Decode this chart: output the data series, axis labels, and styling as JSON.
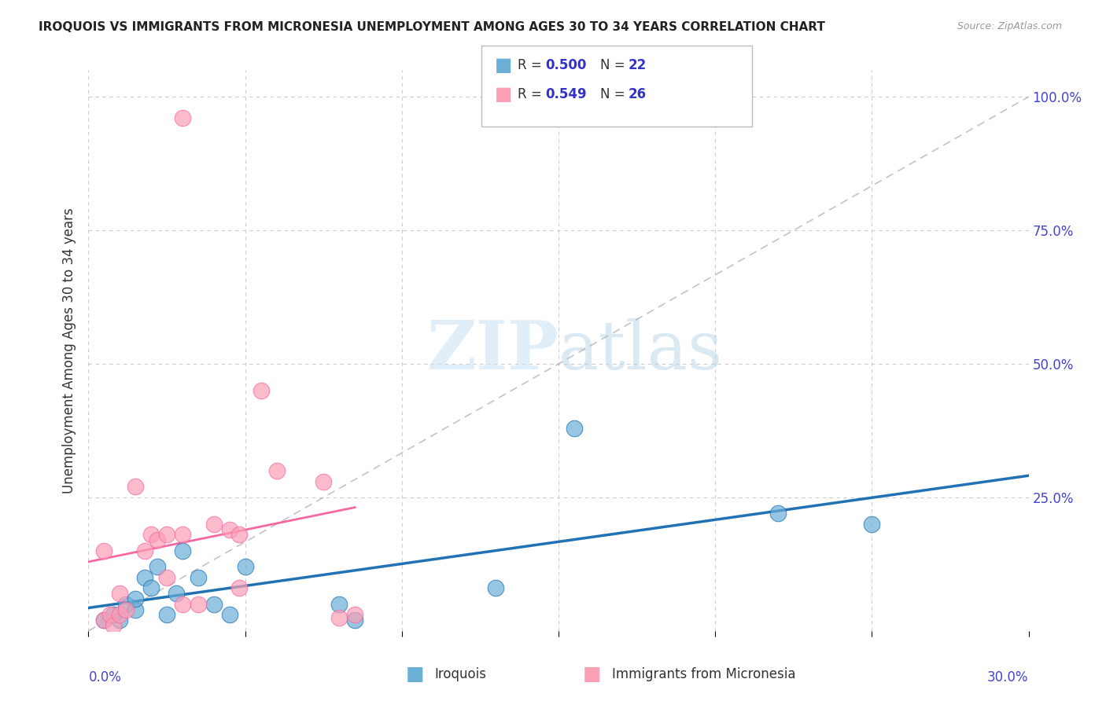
{
  "title": "IROQUOIS VS IMMIGRANTS FROM MICRONESIA UNEMPLOYMENT AMONG AGES 30 TO 34 YEARS CORRELATION CHART",
  "source": "Source: ZipAtlas.com",
  "ylabel": "Unemployment Among Ages 30 to 34 years",
  "xlim": [
    0.0,
    0.3
  ],
  "ylim": [
    0.0,
    1.05
  ],
  "legend_r1": "0.500",
  "legend_n1": "22",
  "legend_r2": "0.549",
  "legend_n2": "26",
  "legend_label1": "Iroquois",
  "legend_label2": "Immigrants from Micronesia",
  "color_blue": "#6baed6",
  "color_pink": "#fa9fb5",
  "color_blue_line": "#2171b5",
  "color_pink_line": "#f768a1",
  "color_r_text": "#3333cc",
  "iroquois_x": [
    0.005,
    0.008,
    0.01,
    0.012,
    0.015,
    0.015,
    0.018,
    0.02,
    0.022,
    0.025,
    0.028,
    0.03,
    0.035,
    0.04,
    0.045,
    0.05,
    0.08,
    0.085,
    0.13,
    0.155,
    0.22,
    0.25
  ],
  "iroquois_y": [
    0.02,
    0.03,
    0.02,
    0.05,
    0.04,
    0.06,
    0.1,
    0.08,
    0.12,
    0.03,
    0.07,
    0.15,
    0.1,
    0.05,
    0.03,
    0.12,
    0.05,
    0.02,
    0.08,
    0.38,
    0.22,
    0.2
  ],
  "micronesia_x": [
    0.005,
    0.007,
    0.008,
    0.01,
    0.01,
    0.012,
    0.015,
    0.018,
    0.02,
    0.022,
    0.025,
    0.025,
    0.03,
    0.03,
    0.035,
    0.04,
    0.045,
    0.048,
    0.048,
    0.055,
    0.06,
    0.075,
    0.08,
    0.085,
    0.03,
    0.005
  ],
  "micronesia_y": [
    0.02,
    0.03,
    0.01,
    0.03,
    0.07,
    0.04,
    0.27,
    0.15,
    0.18,
    0.17,
    0.18,
    0.1,
    0.18,
    0.05,
    0.05,
    0.2,
    0.19,
    0.08,
    0.18,
    0.45,
    0.3,
    0.28,
    0.025,
    0.03,
    0.96,
    0.15
  ],
  "background_color": "#ffffff",
  "watermark_zip": "ZIP",
  "watermark_atlas": "atlas",
  "grid_color": "#cccccc"
}
